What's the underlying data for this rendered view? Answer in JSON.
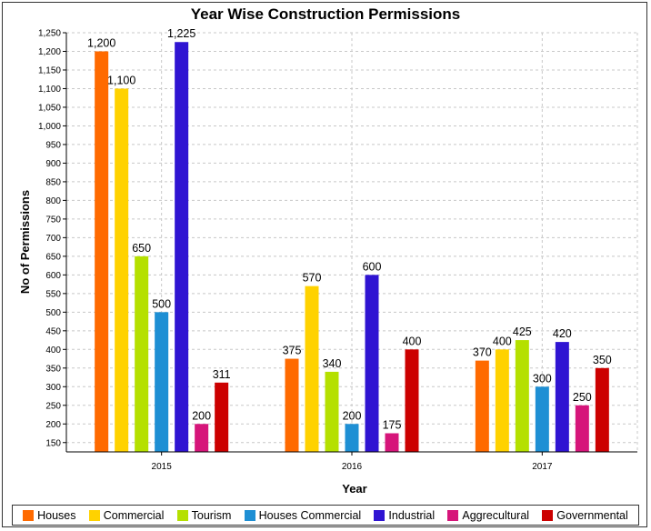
{
  "chart_data": {
    "type": "bar",
    "title": "Year Wise Construction Permissions",
    "xlabel": "Year",
    "ylabel": "No of Permissions",
    "categories": [
      "2015",
      "2016",
      "2017"
    ],
    "ylim": [
      125,
      1250
    ],
    "yticks": [
      150,
      200,
      250,
      300,
      350,
      400,
      450,
      500,
      550,
      600,
      650,
      700,
      750,
      800,
      850,
      900,
      950,
      1000,
      1050,
      1100,
      1150,
      1200,
      1250
    ],
    "ytick_labels": [
      "150",
      "200",
      "250",
      "300",
      "350",
      "400",
      "450",
      "500",
      "550",
      "600",
      "650",
      "700",
      "750",
      "800",
      "850",
      "900",
      "950",
      "1,000",
      "1,050",
      "1,100",
      "1,150",
      "1,200",
      "1,250"
    ],
    "grid": true,
    "legend_position": "bottom",
    "series": [
      {
        "name": "Houses",
        "color": "#ff6a00",
        "values": [
          1200,
          375,
          370
        ],
        "labels": [
          "1,200",
          "375",
          "370"
        ]
      },
      {
        "name": "Commercial",
        "color": "#ffd200",
        "values": [
          1100,
          570,
          400
        ],
        "labels": [
          "1,100",
          "570",
          "400"
        ]
      },
      {
        "name": "Tourism",
        "color": "#b5e000",
        "values": [
          650,
          340,
          425
        ],
        "labels": [
          "650",
          "340",
          "425"
        ]
      },
      {
        "name": "Houses Commercial",
        "color": "#1e8fd4",
        "values": [
          500,
          200,
          300
        ],
        "labels": [
          "500",
          "200",
          "300"
        ]
      },
      {
        "name": "Industrial",
        "color": "#2f14d2",
        "values": [
          1225,
          600,
          420
        ],
        "labels": [
          "1,225",
          "600",
          "420"
        ]
      },
      {
        "name": "Aggrecultural",
        "color": "#d6157a",
        "values": [
          200,
          175,
          250
        ],
        "labels": [
          "200",
          "175",
          "250"
        ]
      },
      {
        "name": "Governmental",
        "color": "#cc0000",
        "values": [
          311,
          400,
          350
        ],
        "labels": [
          "311",
          "400",
          "350"
        ]
      }
    ]
  }
}
